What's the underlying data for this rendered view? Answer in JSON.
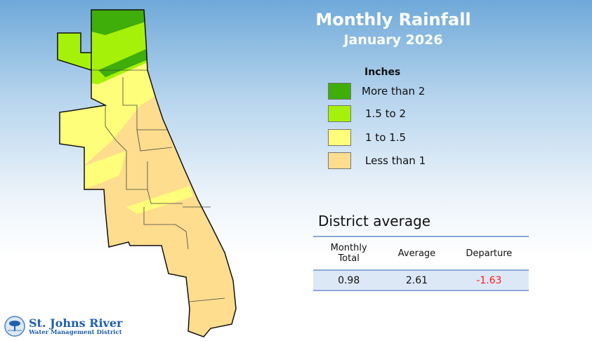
{
  "title": "Monthly Rainfall",
  "subtitle": "January 2026",
  "legend": {
    "title": "Inches",
    "items": [
      {
        "label": "More than 2",
        "color": "#3fad0a"
      },
      {
        "label": "1.5 to 2",
        "color": "#a6f10a"
      },
      {
        "label": "1 to  1.5",
        "color": "#fefe7a"
      },
      {
        "label": "Less than  1",
        "color": "#fedd8e"
      }
    ]
  },
  "district_average": {
    "title": "District average",
    "headers": [
      "Monthly Total",
      "Average",
      "Departure"
    ],
    "values": [
      "0.98",
      "2.61",
      "-1.63"
    ],
    "departure_color": "#ff1a1a"
  },
  "logo": {
    "line1": "St. Johns River",
    "line2": "Water Management District"
  }
}
